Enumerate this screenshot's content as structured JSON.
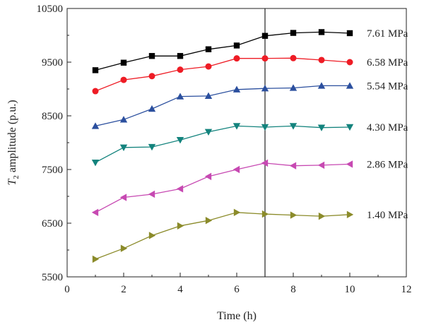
{
  "chart_data": {
    "type": "line",
    "title": "",
    "xlabel": "Time (h)",
    "ylabel_symbol": "T",
    "ylabel_sub": "2",
    "ylabel_rest": " amplitude (p.u.)",
    "xlim": [
      0,
      12
    ],
    "ylim": [
      5500,
      10500
    ],
    "xticks": [
      0,
      2,
      4,
      6,
      8,
      10,
      12
    ],
    "yticks": [
      5500,
      6500,
      7500,
      8500,
      9500,
      10500
    ],
    "vline_x": 7,
    "grid": false,
    "legend": "inline labels at right end of each series",
    "x": [
      1,
      2,
      3,
      4,
      5,
      6,
      7,
      8,
      9,
      10
    ],
    "series": [
      {
        "name": "7.61 MPa",
        "color": "#000000",
        "marker": "square",
        "values": [
          9350,
          9490,
          9615,
          9615,
          9740,
          9810,
          9990,
          10045,
          10060,
          10040
        ]
      },
      {
        "name": "6.58 MPa",
        "color": "#ee1c25",
        "marker": "circle",
        "values": [
          8960,
          9170,
          9240,
          9360,
          9420,
          9570,
          9570,
          9575,
          9540,
          9500
        ]
      },
      {
        "name": "5.54 MPa",
        "color": "#2b4f9e",
        "marker": "triangle-up",
        "values": [
          8310,
          8430,
          8630,
          8860,
          8870,
          8990,
          9010,
          9020,
          9060,
          9060
        ]
      },
      {
        "name": "4.30 MPa",
        "color": "#13837d",
        "marker": "triangle-down",
        "values": [
          7630,
          7910,
          7920,
          8050,
          8200,
          8310,
          8290,
          8310,
          8280,
          8290
        ]
      },
      {
        "name": "2.86 MPa",
        "color": "#c749b2",
        "marker": "triangle-left",
        "values": [
          6700,
          6980,
          7040,
          7140,
          7370,
          7500,
          7620,
          7570,
          7580,
          7600
        ]
      },
      {
        "name": "1.40 MPa",
        "color": "#8b8b2a",
        "marker": "triangle-right",
        "values": [
          5830,
          6030,
          6270,
          6450,
          6550,
          6700,
          6670,
          6650,
          6630,
          6660
        ]
      }
    ]
  }
}
